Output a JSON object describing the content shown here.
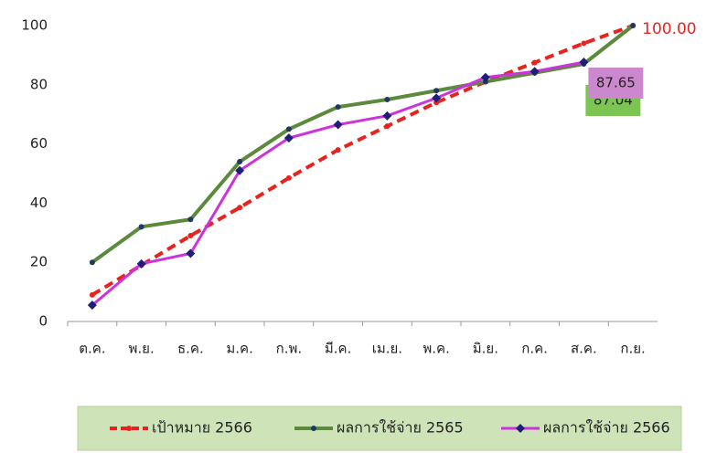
{
  "chart_data": {
    "type": "line",
    "categories": [
      "ต.ค.",
      "พ.ย.",
      "ธ.ค.",
      "ม.ค.",
      "ก.พ.",
      "มี.ค.",
      "เม.ย.",
      "พ.ค.",
      "มิ.ย.",
      "ก.ค.",
      "ส.ค.",
      "ก.ย."
    ],
    "series": [
      {
        "name": "เป้าหมาย 2566",
        "color": "#e8231f",
        "values": [
          9,
          19,
          29,
          38.5,
          48.5,
          58,
          66,
          74,
          81,
          87.5,
          94,
          100
        ],
        "value_labels": [
          null,
          null,
          null,
          null,
          null,
          null,
          null,
          null,
          null,
          null,
          null,
          "100.00"
        ]
      },
      {
        "name": "ผลการใช้จ่าย 2565",
        "color": "#5b8a3c",
        "values": [
          20,
          32,
          34.5,
          54,
          65,
          72.5,
          75,
          78,
          81,
          84,
          87.04,
          100
        ],
        "value_labels": [
          null,
          null,
          null,
          null,
          null,
          null,
          null,
          null,
          null,
          null,
          "87.04",
          null
        ]
      },
      {
        "name": "ผลการใช้จ่าย 2566",
        "color": "#cc33dd",
        "values": [
          5.5,
          19.5,
          23,
          51,
          62,
          66.5,
          69.5,
          75.5,
          82.5,
          84.5,
          87.65,
          null
        ],
        "value_labels": [
          null,
          null,
          null,
          null,
          null,
          null,
          null,
          null,
          null,
          null,
          "87.65",
          null
        ]
      }
    ],
    "ylim": [
      0,
      100
    ],
    "yticks": [
      0,
      20,
      40,
      60,
      80,
      100
    ],
    "grid": false
  }
}
